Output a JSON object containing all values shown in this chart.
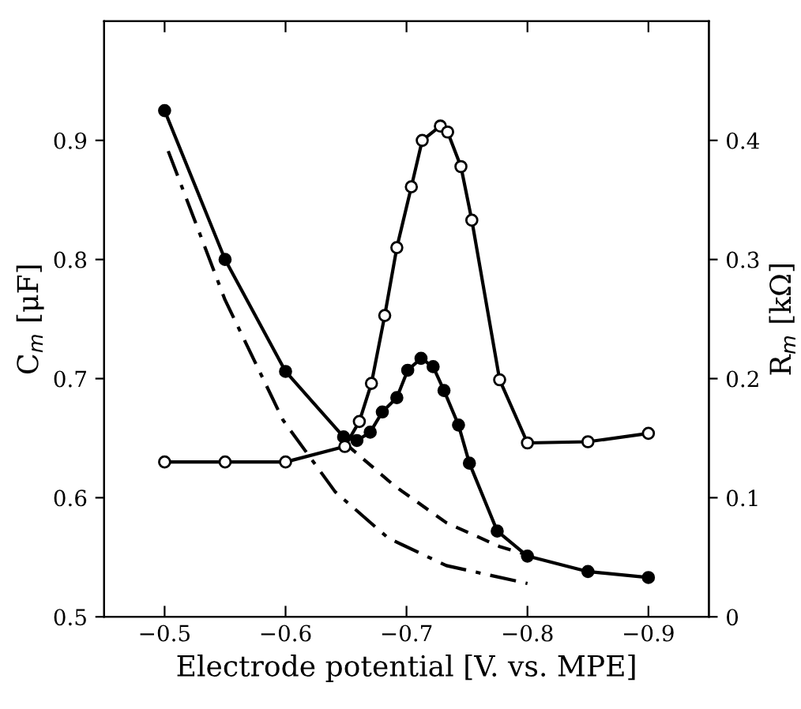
{
  "chart_data": {
    "type": "line",
    "xlabel": "Electrode potential [V. vs. MPE]",
    "ylabel": "C$_{m}$ [μF]",
    "y2label": "R$_{m}$ [kΩ]",
    "xlim": [
      -0.45,
      -0.95
    ],
    "ylim": [
      0.5,
      1.0
    ],
    "y2lim": [
      0,
      0.5
    ],
    "xticks": [
      {
        "value": -0.5,
        "label": "−0.5"
      },
      {
        "value": -0.6,
        "label": "−0.6"
      },
      {
        "value": -0.7,
        "label": "−0.7"
      },
      {
        "value": -0.8,
        "label": "−0.8"
      },
      {
        "value": -0.9,
        "label": "−0.9"
      }
    ],
    "yticks": [
      0.5,
      0.6,
      0.7,
      0.8,
      0.9
    ],
    "y2ticks": [
      0,
      0.1,
      0.2,
      0.3,
      0.4
    ],
    "grid": false,
    "legend": false,
    "series": [
      {
        "color": "#000000",
        "marker": "circle",
        "line_style": "solid",
        "axis": "y",
        "x": [
          -0.5,
          -0.55,
          -0.6,
          -0.648,
          -0.659,
          -0.67,
          -0.68,
          -0.692,
          -0.701,
          -0.712,
          -0.722,
          -0.731,
          -0.743,
          -0.752,
          -0.775,
          -0.8,
          -0.85,
          -0.9
        ],
        "values": [
          0.925,
          0.8,
          0.706,
          0.651,
          0.648,
          0.655,
          0.672,
          0.684,
          0.707,
          0.717,
          0.71,
          0.69,
          0.661,
          0.629,
          0.572,
          0.551,
          0.538,
          0.533
        ]
      },
      {
        "color": "#000000",
        "marker": "circle",
        "line_style": "solid",
        "axis": "y2",
        "x": [
          -0.5,
          -0.55,
          -0.6,
          -0.649,
          -0.661,
          -0.671,
          -0.682,
          -0.692,
          -0.704,
          -0.713,
          -0.728,
          -0.734,
          -0.745,
          -0.754,
          -0.777,
          -0.8,
          -0.85,
          -0.9
        ],
        "values": [
          0.13,
          0.13,
          0.13,
          0.143,
          0.164,
          0.196,
          0.253,
          0.31,
          0.361,
          0.4,
          0.412,
          0.407,
          0.378,
          0.333,
          0.199,
          0.146,
          0.147,
          0.154
        ]
      },
      {
        "color": "#000000",
        "marker": "none",
        "line_style": "dashed",
        "axis": "y",
        "x": [
          -0.65,
          -0.69,
          -0.733,
          -0.777,
          -0.8
        ],
        "values": [
          0.645,
          0.61,
          0.579,
          0.559,
          0.552
        ]
      },
      {
        "color": "#000000",
        "marker": "none",
        "line_style": "dashdot",
        "axis": "y",
        "x": [
          -0.503,
          -0.55,
          -0.598,
          -0.641,
          -0.685,
          -0.733,
          -0.8
        ],
        "values": [
          0.891,
          0.766,
          0.665,
          0.605,
          0.566,
          0.543,
          0.528
        ]
      }
    ]
  }
}
